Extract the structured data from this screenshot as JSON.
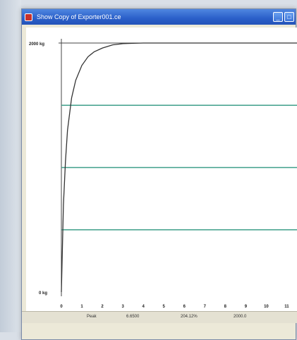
{
  "window": {
    "title": "Show Copy of Exporter001.ce",
    "buttons": [
      "_",
      "□"
    ]
  },
  "chart_data": {
    "type": "line",
    "y_top_label": "2000 kg",
    "y_bottom_label": "0 kg",
    "x_ticks": [
      "0",
      "1",
      "2",
      "3",
      "4",
      "5",
      "6",
      "7",
      "8",
      "9",
      "10",
      "11"
    ],
    "ylim": [
      0,
      2000
    ],
    "xlim": [
      0,
      11.5
    ],
    "reference_lines": [
      500,
      1000,
      1500
    ],
    "series": [
      {
        "x": [
          0,
          0.1,
          0.2,
          0.3,
          0.5,
          0.7,
          1.0,
          1.3,
          1.6,
          2.0,
          2.5,
          3.0,
          3.5,
          4.0,
          5.0,
          11.5
        ],
        "y": [
          0,
          700,
          1050,
          1300,
          1560,
          1700,
          1820,
          1890,
          1930,
          1960,
          1985,
          1995,
          1998,
          2000,
          2000,
          2000
        ]
      }
    ],
    "colors": {
      "curve": "#333333",
      "reference": "#3f9f8a",
      "axis": "#444444"
    }
  },
  "status": {
    "items": [
      "Peak",
      "6.6500",
      "204.12%",
      "2000.0"
    ]
  }
}
